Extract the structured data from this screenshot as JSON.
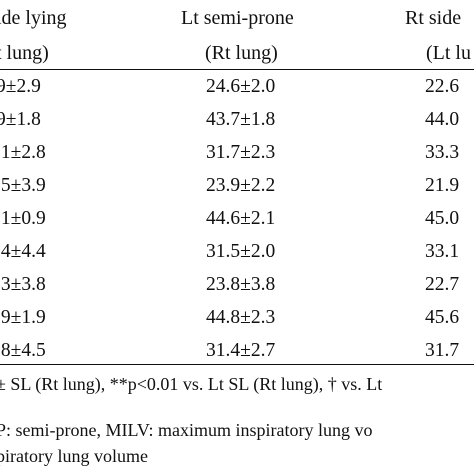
{
  "table": {
    "headers": [
      {
        "line1": "ide lying",
        "line2": "t lung)"
      },
      {
        "line1": "Lt semi-prone",
        "line2": "(Rt lung)"
      },
      {
        "line1": "Rt side",
        "line2": "(Lt lu"
      }
    ],
    "rows": [
      [
        "9±2.9",
        "24.6±2.0",
        "22.6"
      ],
      [
        "9±1.8",
        "43.7±1.8",
        "44.0"
      ],
      [
        ".1±2.8",
        "31.7±2.3",
        "33.3"
      ],
      [
        ".5±3.9",
        "23.9±2.2",
        "21.9"
      ],
      [
        ".1±0.9",
        "44.6±2.1",
        "45.0"
      ],
      [
        ".4±4.4",
        "31.5±2.0",
        "33.1"
      ],
      [
        ".3±3.8",
        "23.8±3.8",
        "22.7"
      ],
      [
        ".9±1.9",
        "44.8±2.3",
        "45.6"
      ],
      [
        ".8±4.5",
        "31.4±2.7",
        "31.7"
      ]
    ]
  },
  "footnotes": {
    "line1": "± SL (Rt lung), **p<0.01 vs. Lt SL (Rt lung), † vs. Lt",
    "line2": "P: semi-prone, MILV: maximum inspiratory lung vo",
    "line3": "piratory lung volume"
  }
}
